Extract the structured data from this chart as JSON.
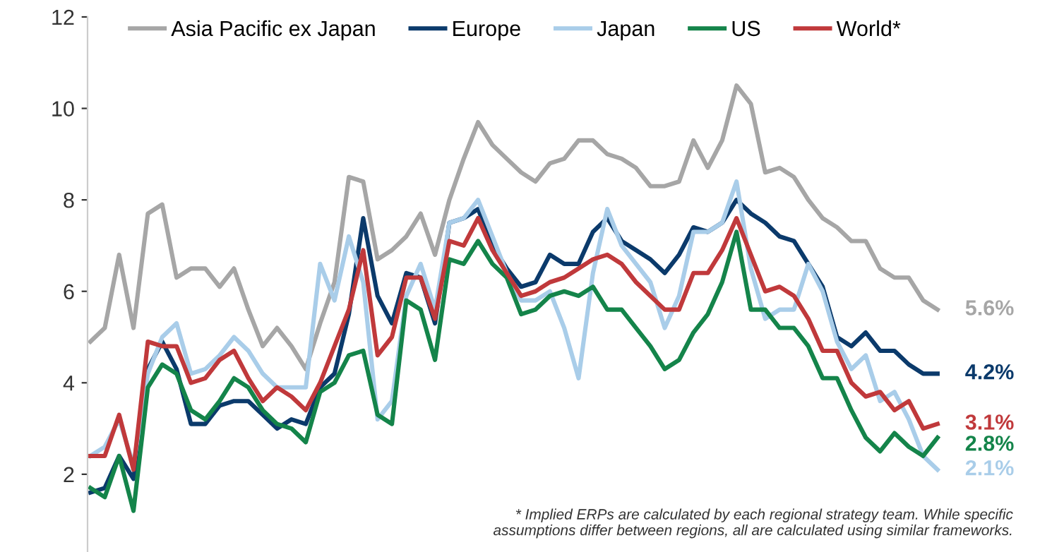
{
  "chart_data": {
    "type": "line",
    "categories": [
      null,
      null,
      null,
      null,
      null,
      null,
      null,
      null,
      null,
      null,
      null,
      null,
      null,
      null,
      null,
      null,
      null,
      null,
      null,
      null,
      null,
      null,
      null,
      null,
      null,
      null,
      null,
      null,
      null,
      null,
      null,
      null,
      null,
      null,
      null,
      null,
      null,
      null,
      null,
      null,
      null,
      null,
      null,
      null,
      null,
      null,
      null,
      null,
      null,
      null,
      null,
      null,
      null,
      null,
      null,
      null,
      null,
      null,
      null,
      null
    ],
    "series": [
      {
        "name": "Asia Pacific ex Japan",
        "color": "#a6a6a6",
        "values": [
          4.9,
          5.2,
          6.8,
          5.2,
          7.7,
          7.9,
          6.3,
          6.5,
          6.5,
          6.1,
          6.5,
          5.6,
          4.8,
          5.2,
          4.8,
          4.3,
          5.3,
          6.2,
          8.5,
          8.4,
          6.7,
          6.9,
          7.2,
          7.7,
          6.8,
          8.0,
          8.9,
          9.7,
          9.2,
          8.9,
          8.6,
          8.4,
          8.8,
          8.9,
          9.3,
          9.3,
          9.0,
          8.9,
          8.7,
          8.3,
          8.3,
          8.4,
          9.3,
          8.7,
          9.3,
          10.5,
          10.1,
          8.6,
          8.7,
          8.5,
          8.0,
          7.6,
          7.4,
          7.1,
          7.1,
          6.5,
          6.3,
          6.3,
          5.8,
          5.6
        ],
        "value_labels": [
          null,
          null,
          null,
          null,
          null,
          null,
          null,
          null,
          null,
          null,
          null,
          null,
          null,
          null,
          null,
          null,
          null,
          null,
          null,
          null,
          null,
          null,
          null,
          null,
          null,
          null,
          null,
          null,
          null,
          null,
          null,
          null,
          null,
          null,
          null,
          null,
          null,
          null,
          null,
          null,
          null,
          null,
          null,
          null,
          null,
          null,
          null,
          null,
          null,
          null,
          null,
          null,
          null,
          null,
          null,
          null,
          null,
          null,
          null,
          "5.6%"
        ]
      },
      {
        "name": "Europe",
        "color": "#0b3a6b",
        "values": [
          1.6,
          1.7,
          2.4,
          1.9,
          4.3,
          4.9,
          4.3,
          3.1,
          3.1,
          3.5,
          3.6,
          3.6,
          3.3,
          3.0,
          3.2,
          3.1,
          3.9,
          4.2,
          5.5,
          7.6,
          5.9,
          5.3,
          6.4,
          6.3,
          5.3,
          7.5,
          7.6,
          7.8,
          7.0,
          6.5,
          6.1,
          6.2,
          6.8,
          6.6,
          6.6,
          7.3,
          7.6,
          7.1,
          6.9,
          6.7,
          6.4,
          6.8,
          7.4,
          7.3,
          7.5,
          8.0,
          7.7,
          7.5,
          7.2,
          7.1,
          6.6,
          6.1,
          5.0,
          4.8,
          5.1,
          4.7,
          4.7,
          4.4,
          4.2,
          4.2
        ],
        "value_labels": [
          null,
          null,
          null,
          null,
          null,
          null,
          null,
          null,
          null,
          null,
          null,
          null,
          null,
          null,
          null,
          null,
          null,
          null,
          null,
          null,
          null,
          null,
          null,
          null,
          null,
          null,
          null,
          null,
          null,
          null,
          null,
          null,
          null,
          null,
          null,
          null,
          null,
          null,
          null,
          null,
          null,
          null,
          null,
          null,
          null,
          null,
          null,
          null,
          null,
          null,
          null,
          null,
          null,
          null,
          null,
          null,
          null,
          null,
          null,
          "4.2%"
        ]
      },
      {
        "name": "Japan",
        "color": "#a9cde9",
        "values": [
          2.4,
          2.6,
          3.2,
          2.2,
          4.2,
          5.0,
          5.3,
          4.2,
          4.3,
          4.6,
          5.0,
          4.7,
          4.2,
          3.9,
          3.9,
          3.9,
          6.6,
          5.8,
          7.2,
          6.2,
          3.2,
          3.6,
          5.9,
          6.6,
          5.6,
          7.5,
          7.6,
          8.0,
          7.2,
          6.4,
          5.8,
          5.8,
          6.0,
          5.2,
          4.1,
          6.4,
          7.8,
          7.0,
          6.6,
          6.2,
          5.2,
          5.9,
          7.3,
          7.3,
          7.5,
          8.4,
          6.5,
          5.4,
          5.6,
          5.6,
          6.6,
          6.0,
          4.9,
          4.3,
          4.6,
          3.6,
          3.8,
          3.2,
          2.4,
          2.1
        ],
        "value_labels": [
          null,
          null,
          null,
          null,
          null,
          null,
          null,
          null,
          null,
          null,
          null,
          null,
          null,
          null,
          null,
          null,
          null,
          null,
          null,
          null,
          null,
          null,
          null,
          null,
          null,
          null,
          null,
          null,
          null,
          null,
          null,
          null,
          null,
          null,
          null,
          null,
          null,
          null,
          null,
          null,
          null,
          null,
          null,
          null,
          null,
          null,
          null,
          null,
          null,
          null,
          null,
          null,
          null,
          null,
          null,
          null,
          null,
          null,
          null,
          "2.1%"
        ]
      },
      {
        "name": "US",
        "color": "#14844a",
        "values": [
          1.7,
          1.5,
          2.4,
          1.2,
          3.9,
          4.4,
          4.2,
          3.4,
          3.2,
          3.6,
          4.1,
          3.9,
          3.4,
          3.1,
          3.0,
          2.7,
          3.8,
          4.0,
          4.6,
          4.7,
          3.3,
          3.1,
          5.8,
          5.6,
          4.5,
          6.7,
          6.6,
          7.1,
          6.6,
          6.3,
          5.5,
          5.6,
          5.9,
          6.0,
          5.9,
          6.1,
          5.6,
          5.6,
          5.2,
          4.8,
          4.3,
          4.5,
          5.1,
          5.5,
          6.2,
          7.3,
          5.6,
          5.6,
          5.2,
          5.2,
          4.8,
          4.1,
          4.1,
          3.4,
          2.8,
          2.5,
          2.9,
          2.6,
          2.4,
          2.8
        ],
        "value_labels": [
          null,
          null,
          null,
          null,
          null,
          null,
          null,
          null,
          null,
          null,
          null,
          null,
          null,
          null,
          null,
          null,
          null,
          null,
          null,
          null,
          null,
          null,
          null,
          null,
          null,
          null,
          null,
          null,
          null,
          null,
          null,
          null,
          null,
          null,
          null,
          null,
          null,
          null,
          null,
          null,
          null,
          null,
          null,
          null,
          null,
          null,
          null,
          null,
          null,
          null,
          null,
          null,
          null,
          null,
          null,
          null,
          null,
          null,
          null,
          "2.8%"
        ]
      },
      {
        "name": "World*",
        "color": "#c0393b",
        "values": [
          2.4,
          2.4,
          3.3,
          2.1,
          4.9,
          4.8,
          4.8,
          4.0,
          4.1,
          4.5,
          4.7,
          4.1,
          3.6,
          3.9,
          3.7,
          3.4,
          4.0,
          4.8,
          5.6,
          6.9,
          4.6,
          5.0,
          6.3,
          6.3,
          5.4,
          7.1,
          7.0,
          7.6,
          6.9,
          6.4,
          5.9,
          6.0,
          6.2,
          6.3,
          6.5,
          6.7,
          6.8,
          6.6,
          6.2,
          5.9,
          5.6,
          5.6,
          6.4,
          6.4,
          6.9,
          7.6,
          6.8,
          6.0,
          6.1,
          5.9,
          5.4,
          4.7,
          4.7,
          4.0,
          3.7,
          3.8,
          3.4,
          3.6,
          3.0,
          3.1
        ],
        "value_labels": [
          null,
          null,
          null,
          null,
          null,
          null,
          null,
          null,
          null,
          null,
          null,
          null,
          null,
          null,
          null,
          null,
          null,
          null,
          null,
          null,
          null,
          null,
          null,
          null,
          null,
          null,
          null,
          null,
          null,
          null,
          null,
          null,
          null,
          null,
          null,
          null,
          null,
          null,
          null,
          null,
          null,
          null,
          null,
          null,
          null,
          null,
          null,
          null,
          null,
          null,
          null,
          null,
          null,
          null,
          null,
          null,
          null,
          null,
          null,
          "3.1%"
        ]
      }
    ],
    "ylim": [
      0.3,
      12
    ],
    "yticks": [
      2,
      4,
      6,
      8,
      10,
      12
    ],
    "tick_labels": "y",
    "legend": "top",
    "grid": false,
    "annotations": [
      "* Implied ERPs are calculated by each regional strategy team. While specific\nassumptions differ between regions, all are calculated using similar frameworks."
    ]
  }
}
